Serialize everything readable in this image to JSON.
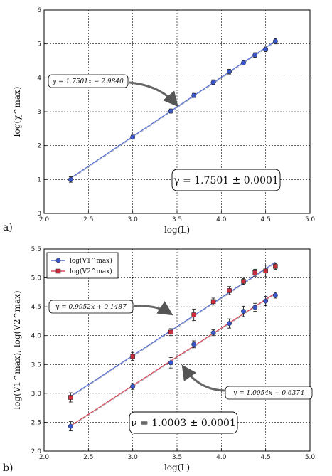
{
  "chart_data": [
    {
      "panel_label": "a)",
      "type": "scatter",
      "xlabel": "log(L)",
      "ylabel": "log(χ^max)",
      "xlim": [
        2.0,
        5.0
      ],
      "ylim": [
        0,
        6
      ],
      "xticks": [
        "2.0",
        "2.5",
        "3.0",
        "3.5",
        "4.0",
        "4.5",
        "5.0"
      ],
      "yticks": [
        "0",
        "1",
        "2",
        "3",
        "4",
        "5",
        "6"
      ],
      "grid": true,
      "series": [
        {
          "color": "#3a55c8",
          "x": [
            2.3,
            3.0,
            3.43,
            3.69,
            3.91,
            4.09,
            4.25,
            4.38,
            4.5,
            4.61
          ],
          "y": [
            1.0,
            2.25,
            3.02,
            3.48,
            3.87,
            4.18,
            4.44,
            4.67,
            4.84,
            5.08
          ],
          "yerr": [
            0.08,
            0.06,
            0.06,
            0.06,
            0.07,
            0.07,
            0.06,
            0.07,
            0.07,
            0.08
          ]
        }
      ],
      "fit": {
        "slope": 1.7501,
        "intercept": -2.984,
        "color": "#3a55c8"
      },
      "annotations": [
        {
          "text": "y = 1.7501x − 2.9840"
        },
        {
          "text": "γ = 1.7501 ± 0.0001"
        }
      ]
    },
    {
      "panel_label": "b)",
      "type": "scatter",
      "xlabel": "log(L)",
      "ylabel": "log(V1^max), log(V2^max)",
      "xlim": [
        2.0,
        5.0
      ],
      "ylim": [
        2.0,
        5.5
      ],
      "xticks": [
        "2.0",
        "2.5",
        "3.0",
        "3.5",
        "4.0",
        "4.5",
        "5.0"
      ],
      "yticks": [
        "2.0",
        "2.5",
        "3.0",
        "3.5",
        "4.0",
        "4.5",
        "5.0",
        "5.5"
      ],
      "grid": true,
      "legend": {
        "position": "top-left",
        "entries": [
          "log(V1^max)",
          "log(V2^max)"
        ]
      },
      "series": [
        {
          "name": "log(V1^max)",
          "marker": "circle",
          "color": "#3a55c8",
          "x": [
            2.3,
            3.0,
            3.43,
            3.69,
            3.91,
            4.09,
            4.25,
            4.38,
            4.5,
            4.61
          ],
          "y": [
            2.43,
            3.12,
            3.53,
            3.85,
            4.05,
            4.21,
            4.42,
            4.49,
            4.6,
            4.7
          ],
          "yerr": [
            0.08,
            0.05,
            0.09,
            0.06,
            0.05,
            0.08,
            0.09,
            0.07,
            0.08,
            0.05
          ]
        },
        {
          "name": "log(V2^max)",
          "marker": "square",
          "color": "#cc2b3e",
          "x": [
            2.3,
            3.0,
            3.43,
            3.69,
            3.91,
            4.09,
            4.25,
            4.38,
            4.5,
            4.61
          ],
          "y": [
            2.93,
            3.64,
            4.06,
            4.36,
            4.59,
            4.78,
            4.94,
            5.09,
            5.12,
            5.2
          ],
          "yerr": [
            0.08,
            0.07,
            0.06,
            0.1,
            0.06,
            0.07,
            0.05,
            0.06,
            0.1,
            0.05
          ]
        }
      ],
      "fits": [
        {
          "slope": 1.0054,
          "intercept": 0.6374,
          "color": "#3a55c8"
        },
        {
          "slope": 0.9952,
          "intercept": 0.1487,
          "color": "#cc2b3e"
        }
      ],
      "annotations": [
        {
          "text": "y = 0.9952x + 0.1487"
        },
        {
          "text": "y = 1.0054x + 0.6374"
        },
        {
          "text": "ν = 1.0003 ± 0.0001"
        }
      ]
    }
  ]
}
